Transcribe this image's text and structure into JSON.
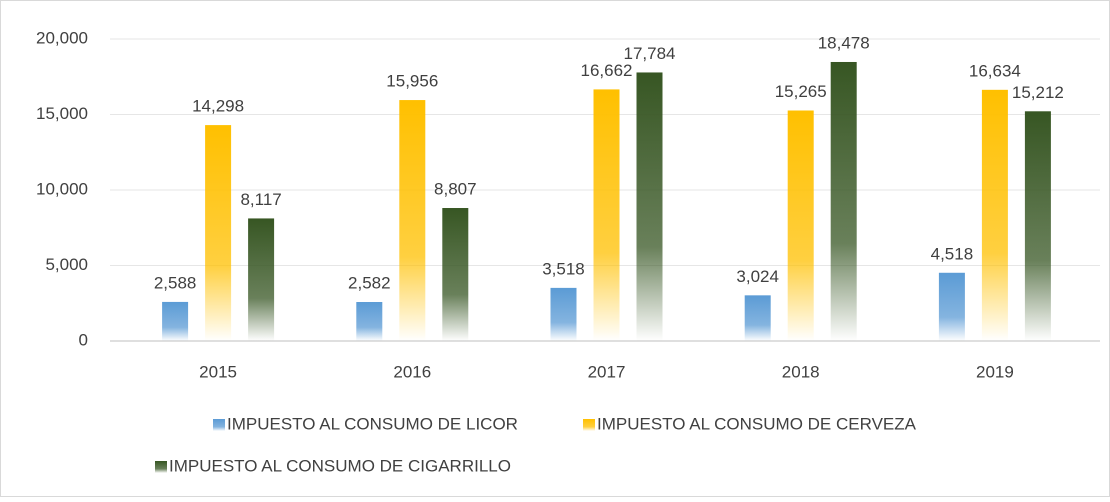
{
  "chart_data": {
    "type": "bar",
    "categories": [
      "2015",
      "2016",
      "2017",
      "2018",
      "2019"
    ],
    "series": [
      {
        "name": "IMPUESTO AL CONSUMO DE LICOR",
        "color": "#5b9bd5",
        "values": [
          2588,
          2582,
          3518,
          3024,
          4518
        ],
        "value_labels": [
          "2,588",
          "2,582",
          "3,518",
          "3,024",
          "4,518"
        ]
      },
      {
        "name": "IMPUESTO AL CONSUMO DE CERVEZA",
        "color": "#ffc000",
        "values": [
          14298,
          15956,
          16662,
          15265,
          16634
        ],
        "value_labels": [
          "14,298",
          "15,956",
          "16,662",
          "15,265",
          "16,634"
        ]
      },
      {
        "name": "IMPUESTO AL CONSUMO DE CIGARRILLO",
        "color": "#375623",
        "values": [
          8117,
          8807,
          17784,
          18478,
          15212
        ],
        "value_labels": [
          "8,117",
          "8,807",
          "17,784",
          "18,478",
          "15,212"
        ]
      }
    ],
    "ylim": [
      0,
      20000
    ],
    "yticks": [
      0,
      {
        "value": 5000,
        "label": "5,000"
      },
      {
        "value": 10000,
        "label": "10,000"
      },
      {
        "value": 15000,
        "label": "15,000"
      },
      {
        "value": 20000,
        "label": "20,000"
      }
    ],
    "grid": true,
    "legend": "bottom"
  }
}
